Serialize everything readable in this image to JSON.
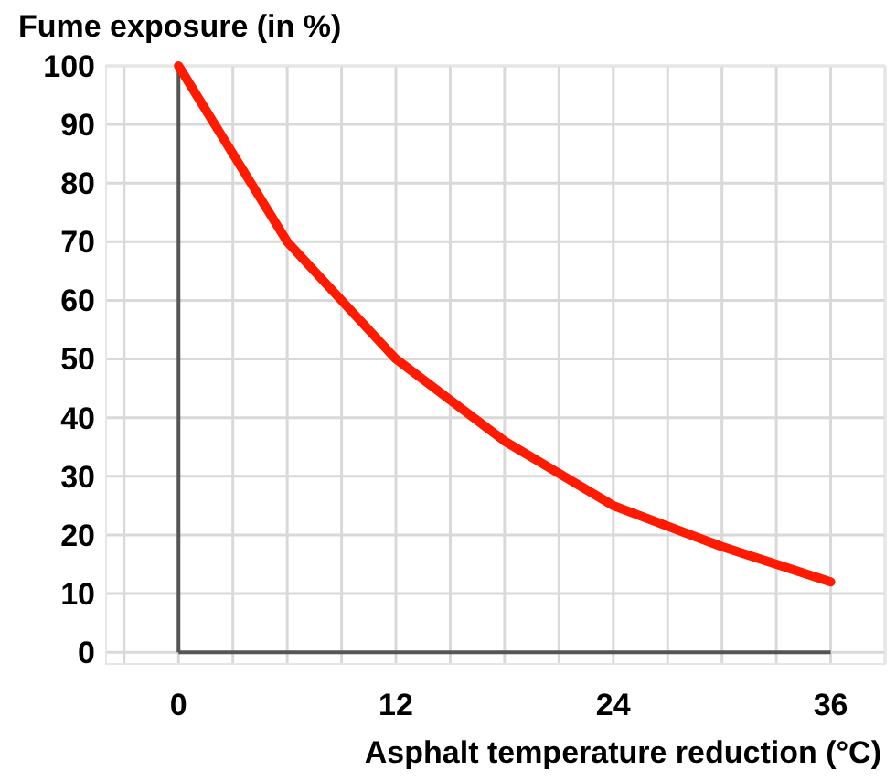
{
  "chart_data": {
    "type": "line",
    "title": "Fume exposure (in %)",
    "xlabel": "Asphalt temperature reduction (°C)",
    "x": [
      0,
      6,
      12,
      18,
      24,
      30,
      36
    ],
    "series": [
      {
        "color": "#ff1a00",
        "values": [
          100,
          70,
          50,
          36,
          25,
          18,
          12
        ]
      }
    ],
    "xlim": [
      -4,
      39
    ],
    "ylim": [
      -2,
      100
    ],
    "xticks": [
      {
        "value": -3,
        "label": null
      },
      0,
      {
        "value": 3,
        "label": null
      },
      {
        "value": 6,
        "label": null
      },
      {
        "value": 9,
        "label": null
      },
      12,
      {
        "value": 15,
        "label": null
      },
      {
        "value": 18,
        "label": null
      },
      {
        "value": 21,
        "label": null
      },
      24,
      {
        "value": 27,
        "label": null
      },
      {
        "value": 30,
        "label": null
      },
      {
        "value": 33,
        "label": null
      },
      36,
      {
        "value": 39,
        "label": null
      }
    ],
    "yticks": [
      0,
      10,
      20,
      30,
      40,
      50,
      60,
      70,
      80,
      90,
      100
    ],
    "grid": true,
    "marker": "none",
    "line_style": "solid"
  }
}
